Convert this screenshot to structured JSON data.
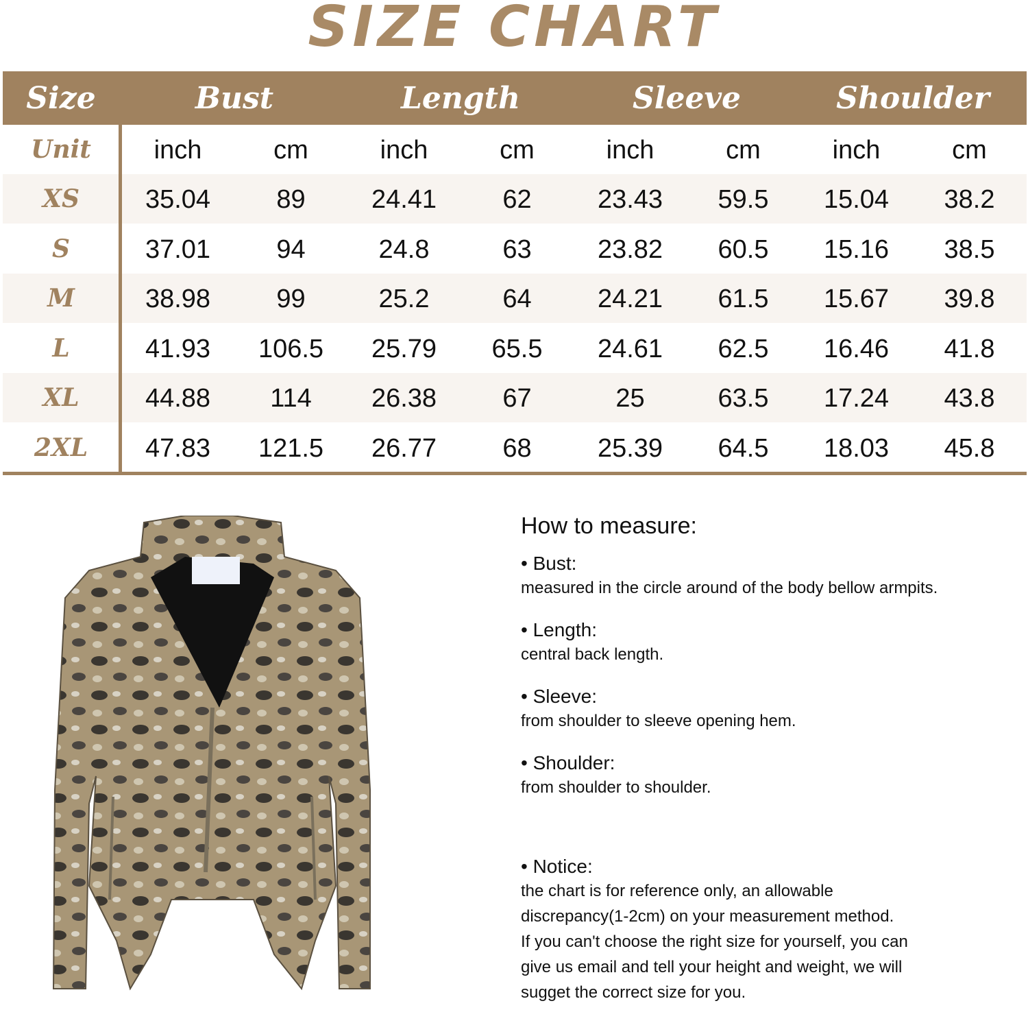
{
  "title": "SIZE CHART",
  "colors": {
    "accent": "#a0825f",
    "title": "#a98a66",
    "stripe": "#f8f4f0"
  },
  "table": {
    "headers": [
      "Size",
      "Bust",
      "Length",
      "Sleeve",
      "Shoulder"
    ],
    "unit_label": "Unit",
    "units": [
      "inch",
      "cm",
      "inch",
      "cm",
      "inch",
      "cm",
      "inch",
      "cm"
    ],
    "rows": [
      {
        "size": "XS",
        "values": [
          "35.04",
          "89",
          "24.41",
          "62",
          "23.43",
          "59.5",
          "15.04",
          "38.2"
        ]
      },
      {
        "size": "S",
        "values": [
          "37.01",
          "94",
          "24.8",
          "63",
          "23.82",
          "60.5",
          "15.16",
          "38.5"
        ]
      },
      {
        "size": "M",
        "values": [
          "38.98",
          "99",
          "25.2",
          "64",
          "24.21",
          "61.5",
          "15.67",
          "39.8"
        ]
      },
      {
        "size": "L",
        "values": [
          "41.93",
          "106.5",
          "25.79",
          "65.5",
          "24.61",
          "62.5",
          "16.46",
          "41.8"
        ]
      },
      {
        "size": "XL",
        "values": [
          "44.88",
          "114",
          "26.38",
          "67",
          "25",
          "63.5",
          "17.24",
          "43.8"
        ]
      },
      {
        "size": "2XL",
        "values": [
          "47.83",
          "121.5",
          "26.77",
          "68",
          "25.39",
          "64.5",
          "18.03",
          "45.8"
        ]
      }
    ]
  },
  "measure": {
    "heading": "How to measure:",
    "items": [
      {
        "label": "• Bust:",
        "text": "measured in the circle around of the body bellow armpits."
      },
      {
        "label": "• Length:",
        "text": "central back length."
      },
      {
        "label": "• Sleeve:",
        "text": "from shoulder to sleeve opening hem."
      },
      {
        "label": "• Shoulder:",
        "text": "from shoulder to shoulder."
      }
    ],
    "notice": {
      "label": "• Notice:",
      "lines": [
        "the chart is for reference only, an allowable",
        "discrepancy(1-2cm) on your measurement method.",
        "If you can't choose the right size for yourself, you can",
        "give us email and tell your height and weight, we will",
        "sugget the correct size for you."
      ]
    }
  },
  "product_image": {
    "subject": "snakeskin-print-jacket"
  }
}
